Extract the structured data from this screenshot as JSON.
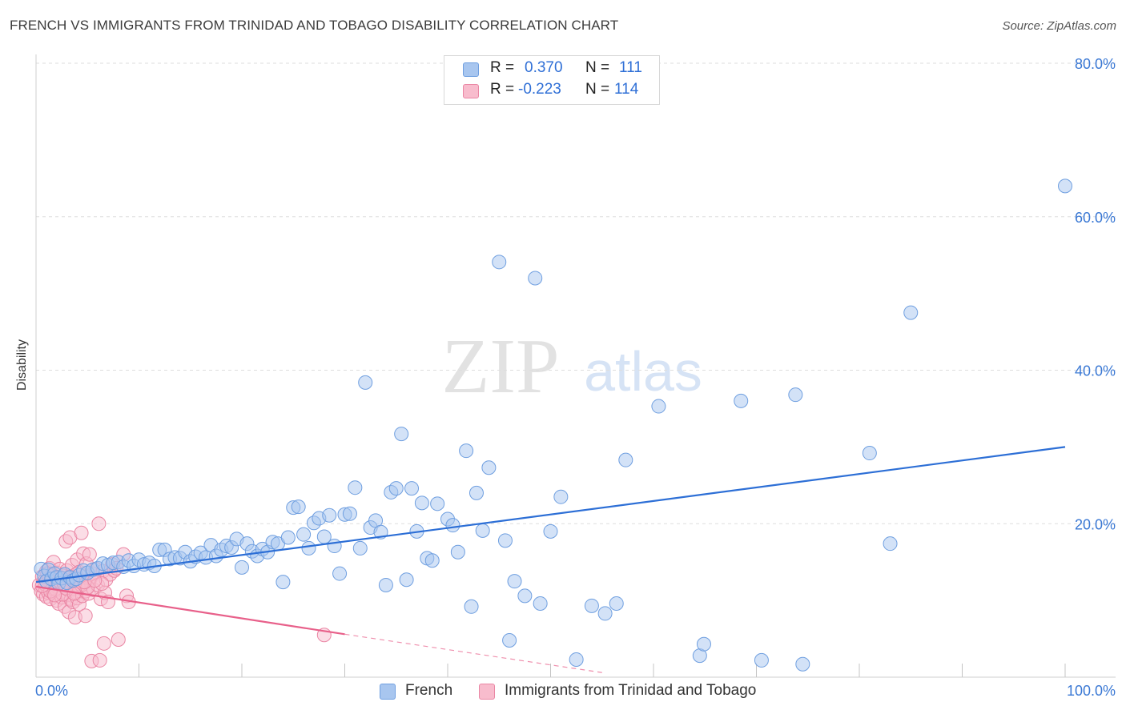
{
  "title": "FRENCH VS IMMIGRANTS FROM TRINIDAD AND TOBAGO DISABILITY CORRELATION CHART",
  "source": "Source: ZipAtlas.com",
  "watermark": {
    "zip": "ZIP",
    "atlas": "atlas"
  },
  "legend": {
    "r_label": "R =",
    "n_label": "N =",
    "rows": [
      {
        "r": "0.370",
        "n": "111",
        "color": "#a8c6ef",
        "stroke": "#6f9fe0"
      },
      {
        "r": "-0.223",
        "n": "114",
        "color": "#f8bccd",
        "stroke": "#ea86a4"
      }
    ]
  },
  "bottom_legend": [
    "French",
    "Immigrants from Trinidad and Tobago"
  ],
  "chart_data": {
    "type": "scatter",
    "title": "FRENCH VS IMMIGRANTS FROM TRINIDAD AND TOBAGO DISABILITY CORRELATION CHART",
    "xlabel": "",
    "ylabel": "Disability",
    "xlim": [
      0,
      100
    ],
    "ylim": [
      0,
      80
    ],
    "x_tick_labels": [
      "0.0%",
      "100.0%"
    ],
    "y_tick_labels": [
      "20.0%",
      "40.0%",
      "60.0%",
      "80.0%"
    ],
    "y_ticks": [
      20,
      40,
      60,
      80
    ],
    "grid": true,
    "legend_placement": "top-center",
    "colors": {
      "french": "#2d6fd6",
      "trinidad": "#e8608a",
      "french_fill": "#a8c6ef",
      "trinidad_fill": "#f8bccd"
    },
    "series": [
      {
        "name": "French",
        "trend": {
          "x": [
            0,
            100
          ],
          "y": [
            12.4,
            30.0
          ],
          "r": 0.37,
          "n": 111
        },
        "points": [
          [
            0.5,
            14.1
          ],
          [
            0.8,
            13.2
          ],
          [
            1.0,
            12.5
          ],
          [
            1.2,
            14.0
          ],
          [
            1.5,
            12.8
          ],
          [
            1.8,
            13.5
          ],
          [
            2.0,
            13.0
          ],
          [
            2.2,
            12.2
          ],
          [
            2.5,
            12.9
          ],
          [
            2.8,
            13.4
          ],
          [
            3.0,
            12.3
          ],
          [
            3.3,
            13.0
          ],
          [
            3.6,
            12.6
          ],
          [
            3.9,
            12.8
          ],
          [
            4.2,
            13.3
          ],
          [
            4.6,
            13.9
          ],
          [
            5.0,
            13.6
          ],
          [
            5.5,
            14.0
          ],
          [
            6.0,
            14.2
          ],
          [
            6.5,
            14.8
          ],
          [
            7.0,
            14.6
          ],
          [
            7.5,
            14.9
          ],
          [
            8.0,
            15.0
          ],
          [
            8.5,
            14.4
          ],
          [
            9.0,
            15.2
          ],
          [
            9.5,
            14.5
          ],
          [
            10.0,
            15.3
          ],
          [
            10.5,
            14.7
          ],
          [
            11.0,
            14.9
          ],
          [
            11.5,
            14.5
          ],
          [
            12.0,
            16.6
          ],
          [
            12.5,
            16.6
          ],
          [
            13.0,
            15.4
          ],
          [
            13.5,
            15.6
          ],
          [
            14.0,
            15.5
          ],
          [
            14.5,
            16.3
          ],
          [
            15.0,
            15.1
          ],
          [
            15.5,
            15.7
          ],
          [
            16.0,
            16.2
          ],
          [
            16.5,
            15.6
          ],
          [
            17.0,
            17.2
          ],
          [
            17.5,
            15.8
          ],
          [
            18.0,
            16.6
          ],
          [
            18.5,
            17.1
          ],
          [
            19.0,
            16.9
          ],
          [
            19.5,
            18.0
          ],
          [
            20.0,
            14.3
          ],
          [
            20.5,
            17.4
          ],
          [
            21.0,
            16.4
          ],
          [
            21.5,
            15.8
          ],
          [
            22.0,
            16.7
          ],
          [
            22.5,
            16.3
          ],
          [
            23.0,
            17.6
          ],
          [
            23.5,
            17.4
          ],
          [
            24.0,
            12.4
          ],
          [
            24.5,
            18.2
          ],
          [
            25.0,
            22.1
          ],
          [
            25.5,
            22.2
          ],
          [
            26.0,
            18.6
          ],
          [
            26.5,
            16.8
          ],
          [
            27.0,
            20.1
          ],
          [
            27.5,
            20.7
          ],
          [
            28.0,
            18.3
          ],
          [
            28.5,
            21.1
          ],
          [
            29.0,
            17.1
          ],
          [
            29.5,
            13.5
          ],
          [
            30.0,
            21.2
          ],
          [
            30.5,
            21.3
          ],
          [
            31.0,
            24.7
          ],
          [
            31.5,
            16.8
          ],
          [
            32.0,
            38.4
          ],
          [
            32.5,
            19.5
          ],
          [
            33.0,
            20.4
          ],
          [
            33.5,
            18.9
          ],
          [
            34.0,
            12.0
          ],
          [
            34.5,
            24.1
          ],
          [
            35.0,
            24.6
          ],
          [
            35.5,
            31.7
          ],
          [
            36.0,
            12.7
          ],
          [
            36.5,
            24.6
          ],
          [
            37.0,
            19.0
          ],
          [
            37.5,
            22.7
          ],
          [
            38.0,
            15.5
          ],
          [
            38.5,
            15.2
          ],
          [
            39.0,
            22.6
          ],
          [
            40.0,
            20.6
          ],
          [
            40.5,
            19.8
          ],
          [
            41.0,
            16.3
          ],
          [
            41.8,
            29.5
          ],
          [
            42.3,
            9.2
          ],
          [
            42.8,
            24.0
          ],
          [
            43.4,
            19.1
          ],
          [
            44.0,
            27.3
          ],
          [
            45.0,
            54.1
          ],
          [
            45.6,
            17.8
          ],
          [
            46.0,
            4.8
          ],
          [
            46.5,
            12.5
          ],
          [
            47.5,
            10.6
          ],
          [
            48.5,
            52.0
          ],
          [
            49.0,
            9.6
          ],
          [
            50.0,
            19.0
          ],
          [
            51.0,
            23.5
          ],
          [
            52.5,
            2.3
          ],
          [
            54.0,
            9.3
          ],
          [
            55.3,
            8.3
          ],
          [
            56.4,
            9.6
          ],
          [
            57.3,
            28.3
          ],
          [
            60.5,
            35.3
          ],
          [
            64.5,
            2.8
          ],
          [
            64.9,
            4.3
          ],
          [
            68.5,
            36.0
          ],
          [
            70.5,
            2.2
          ],
          [
            73.8,
            36.8
          ],
          [
            74.5,
            1.7
          ],
          [
            81.0,
            29.2
          ],
          [
            83.0,
            17.4
          ],
          [
            85.0,
            47.5
          ],
          [
            100.0,
            64.0
          ]
        ]
      },
      {
        "name": "Immigrants from Trinidad and Tobago",
        "trend": {
          "x": [
            0,
            30
          ],
          "y": [
            11.8,
            5.6
          ],
          "dashed_to": [
            55,
            0.6
          ],
          "r": -0.223,
          "n": 114
        },
        "points": [
          [
            0.3,
            12.0
          ],
          [
            0.5,
            11.2
          ],
          [
            0.6,
            13.1
          ],
          [
            0.7,
            10.8
          ],
          [
            0.8,
            12.5
          ],
          [
            0.9,
            11.6
          ],
          [
            1.0,
            13.8
          ],
          [
            1.0,
            10.5
          ],
          [
            1.1,
            12.2
          ],
          [
            1.2,
            11.0
          ],
          [
            1.3,
            14.2
          ],
          [
            1.3,
            12.8
          ],
          [
            1.4,
            10.2
          ],
          [
            1.5,
            11.9
          ],
          [
            1.5,
            13.4
          ],
          [
            1.6,
            12.3
          ],
          [
            1.7,
            10.9
          ],
          [
            1.7,
            15.0
          ],
          [
            1.8,
            11.4
          ],
          [
            1.9,
            12.9
          ],
          [
            2.0,
            13.6
          ],
          [
            2.0,
            10.0
          ],
          [
            2.1,
            11.7
          ],
          [
            2.2,
            12.4
          ],
          [
            2.2,
            9.6
          ],
          [
            2.3,
            14.1
          ],
          [
            2.4,
            11.1
          ],
          [
            2.5,
            12.7
          ],
          [
            2.5,
            10.4
          ],
          [
            2.6,
            13.2
          ],
          [
            2.7,
            11.8
          ],
          [
            2.8,
            9.2
          ],
          [
            2.8,
            12.0
          ],
          [
            2.9,
            17.7
          ],
          [
            3.0,
            10.7
          ],
          [
            3.0,
            13.9
          ],
          [
            3.1,
            12.6
          ],
          [
            3.2,
            8.5
          ],
          [
            3.2,
            11.3
          ],
          [
            3.3,
            18.2
          ],
          [
            3.4,
            12.1
          ],
          [
            3.4,
            10.1
          ],
          [
            3.5,
            14.6
          ],
          [
            3.6,
            11.5
          ],
          [
            3.6,
            9.8
          ],
          [
            3.7,
            13.0
          ],
          [
            3.8,
            12.4
          ],
          [
            3.8,
            7.8
          ],
          [
            3.9,
            11.0
          ],
          [
            4.0,
            15.3
          ],
          [
            4.0,
            10.3
          ],
          [
            4.1,
            12.8
          ],
          [
            4.2,
            9.5
          ],
          [
            4.2,
            13.7
          ],
          [
            4.3,
            11.6
          ],
          [
            4.4,
            18.8
          ],
          [
            4.5,
            12.2
          ],
          [
            4.5,
            10.6
          ],
          [
            4.6,
            16.1
          ],
          [
            4.7,
            13.2
          ],
          [
            4.8,
            11.2
          ],
          [
            4.8,
            8.0
          ],
          [
            4.9,
            14.8
          ],
          [
            5.0,
            12.5
          ],
          [
            5.1,
            10.9
          ],
          [
            5.2,
            16.0
          ],
          [
            5.3,
            12.9
          ],
          [
            5.4,
            2.1
          ],
          [
            5.5,
            13.5
          ],
          [
            5.6,
            11.4
          ],
          [
            5.8,
            14.1
          ],
          [
            6.0,
            12.0
          ],
          [
            6.1,
            20.0
          ],
          [
            6.2,
            2.2
          ],
          [
            6.3,
            10.2
          ],
          [
            6.5,
            13.8
          ],
          [
            6.6,
            4.4
          ],
          [
            6.7,
            11.0
          ],
          [
            6.8,
            12.7
          ],
          [
            7.0,
            9.8
          ],
          [
            7.2,
            13.4
          ],
          [
            7.4,
            14.7
          ],
          [
            7.6,
            13.9
          ],
          [
            8.0,
            4.9
          ],
          [
            8.5,
            16.0
          ],
          [
            8.8,
            10.6
          ],
          [
            9.0,
            9.8
          ],
          [
            1.2,
            12.6
          ],
          [
            1.9,
            11.5
          ],
          [
            2.4,
            12.9
          ],
          [
            3.0,
            11.9
          ],
          [
            1.6,
            13.3
          ],
          [
            2.6,
            10.8
          ],
          [
            0.9,
            12.1
          ],
          [
            3.5,
            12.5
          ],
          [
            4.1,
            11.8
          ],
          [
            2.1,
            12.4
          ],
          [
            1.4,
            11.2
          ],
          [
            3.3,
            13.1
          ],
          [
            2.9,
            11.6
          ],
          [
            4.4,
            12.0
          ],
          [
            1.8,
            10.7
          ],
          [
            5.0,
            11.7
          ],
          [
            2.3,
            13.0
          ],
          [
            3.7,
            10.9
          ],
          [
            0.6,
            11.9
          ],
          [
            4.7,
            12.4
          ],
          [
            1.1,
            13.5
          ],
          [
            6.4,
            12.2
          ],
          [
            7.8,
            14.2
          ],
          [
            2.7,
            12.2
          ],
          [
            3.9,
            13.4
          ],
          [
            5.7,
            12.6
          ],
          [
            28.0,
            5.5
          ]
        ]
      }
    ]
  }
}
